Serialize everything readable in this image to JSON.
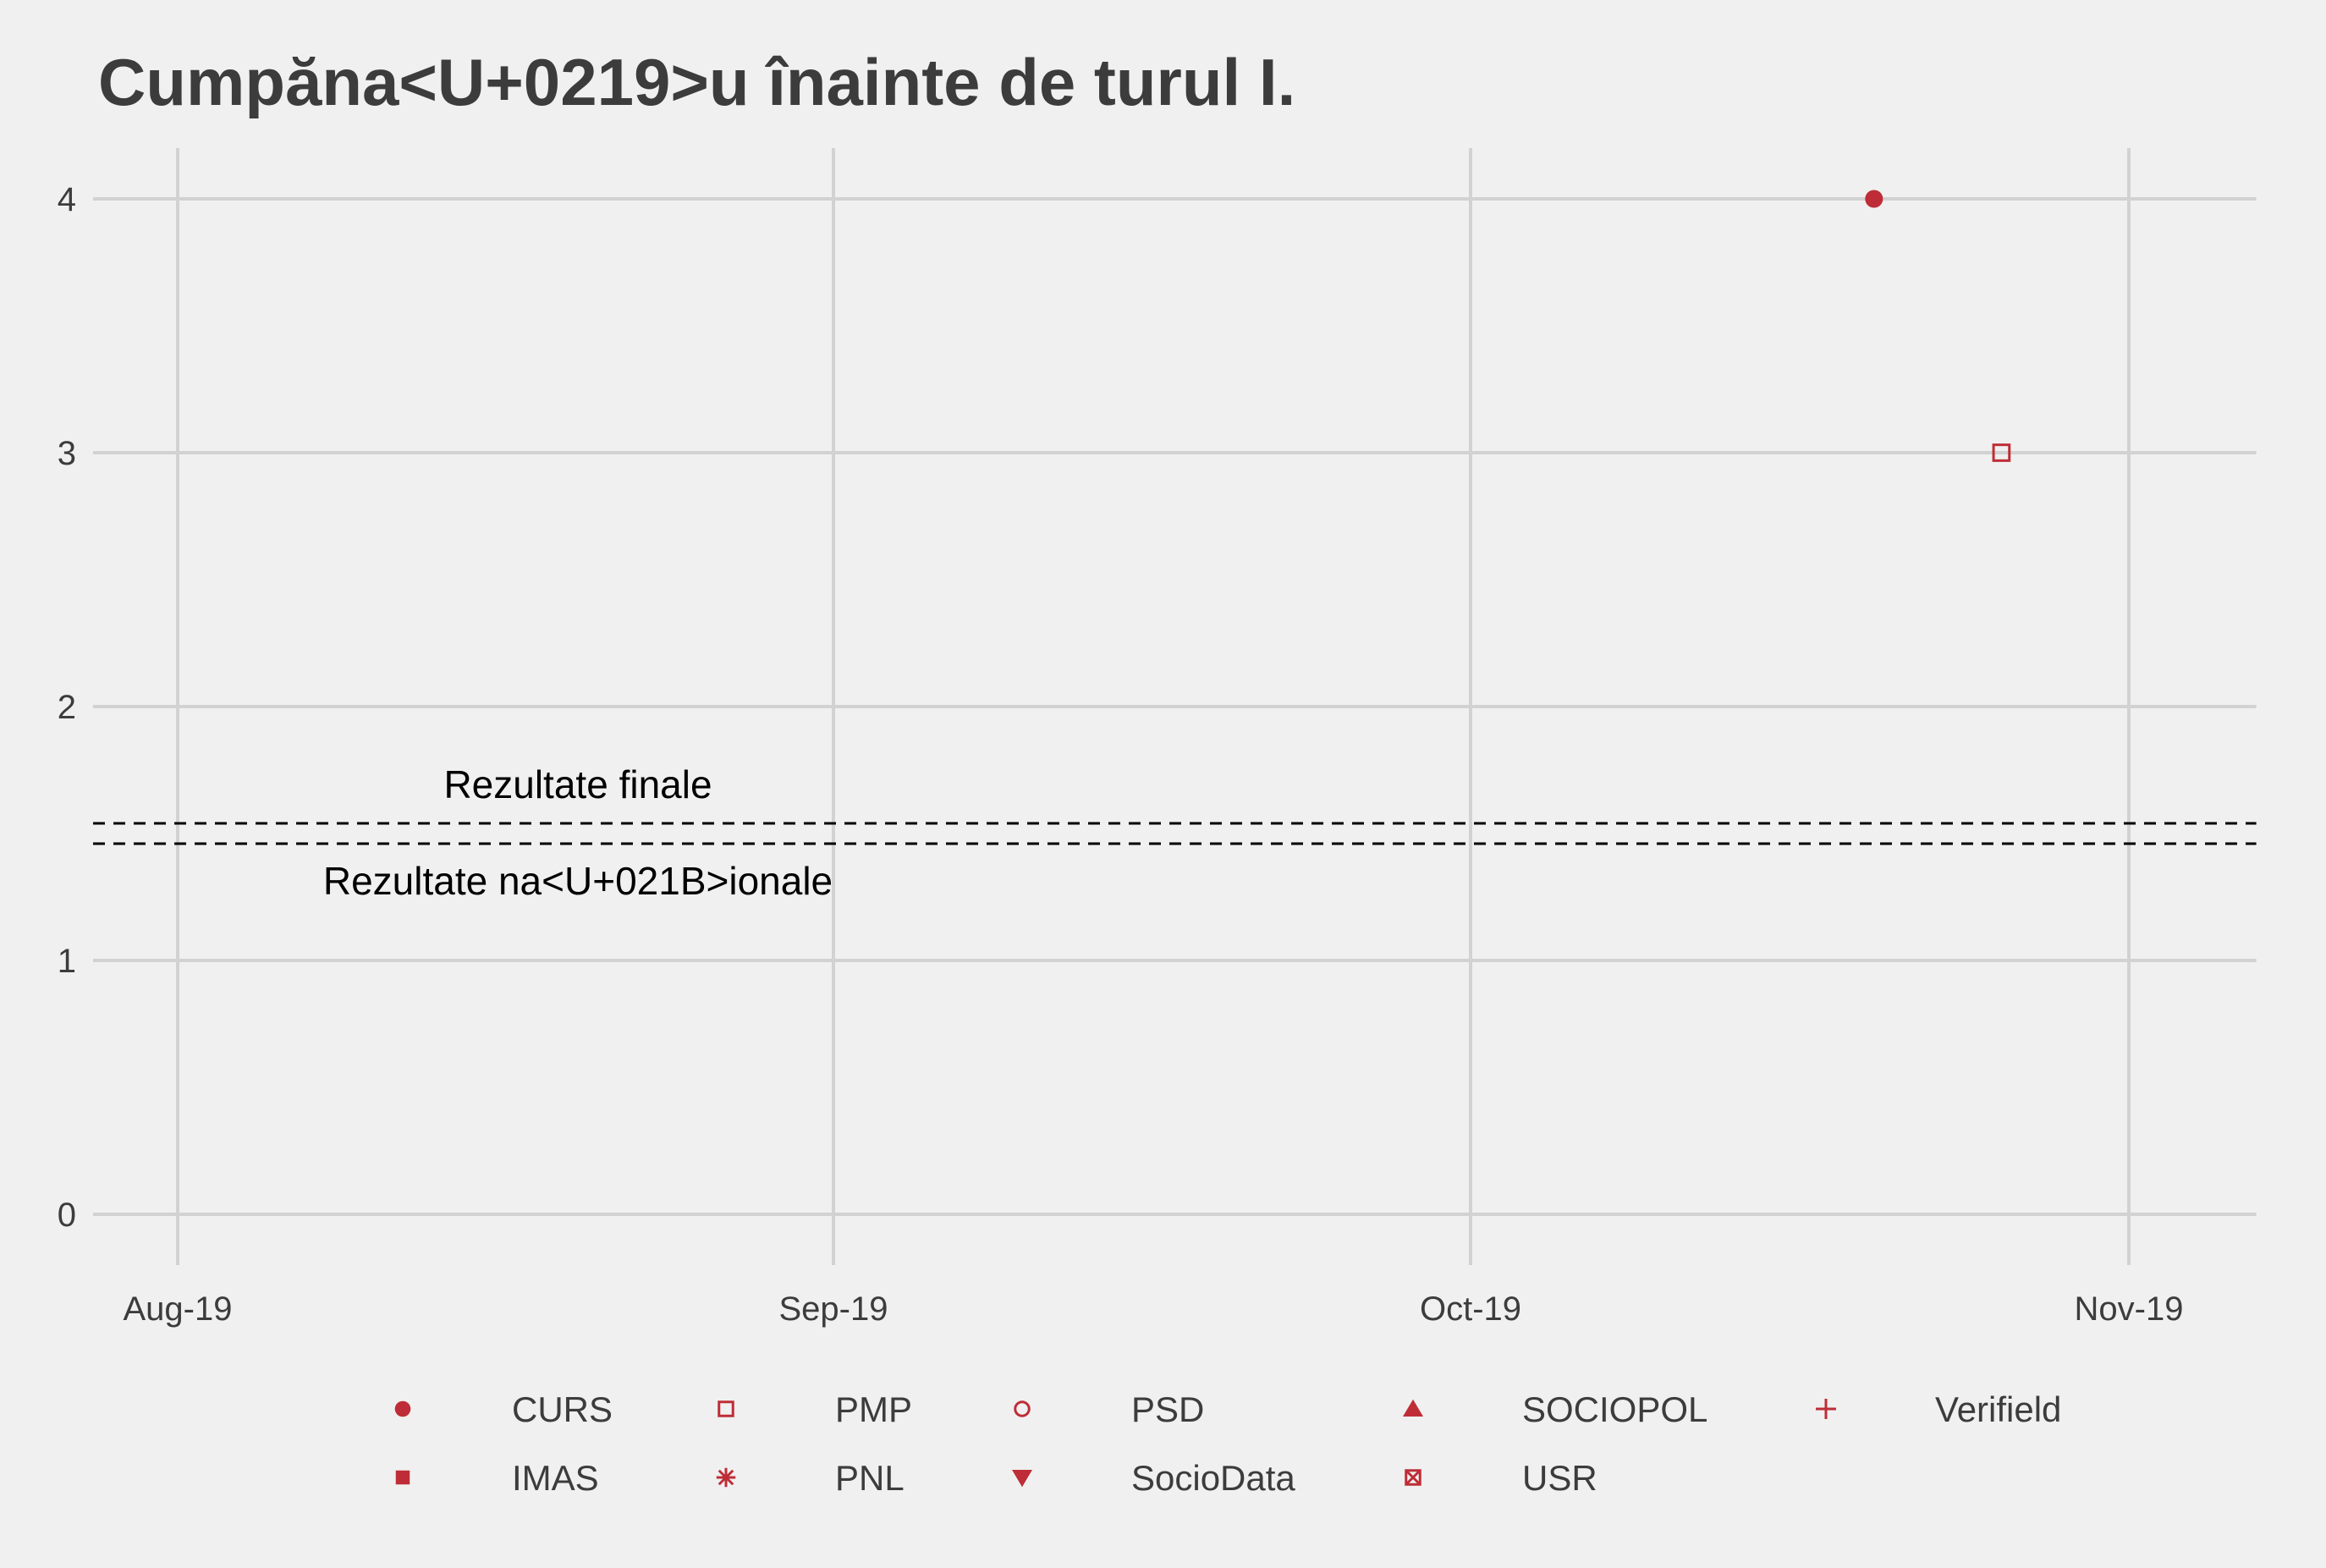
{
  "chart_data": {
    "type": "scatter",
    "title": "Cumpăna<U+0219>u înainte de turul I.",
    "xlabel": "",
    "ylabel": "",
    "x_ticks": [
      "Aug-19",
      "Sep-19",
      "Oct-19",
      "Nov-19"
    ],
    "x_tick_dates": [
      "2019-08-01",
      "2019-09-01",
      "2019-10-01",
      "2019-11-01"
    ],
    "xlim": [
      "2019-07-28",
      "2019-11-07"
    ],
    "ylim": [
      -0.2,
      4.2
    ],
    "y_ticks": [
      0,
      1,
      2,
      3,
      4
    ],
    "grid": true,
    "legend_position": "bottom",
    "color": "#BE2D37",
    "series": [
      {
        "name": "CURS",
        "shape": "filled-circle",
        "points": [
          {
            "x": "2019-10-20",
            "y": 4
          }
        ]
      },
      {
        "name": "IMAS",
        "shape": "filled-square",
        "points": []
      },
      {
        "name": "PMP",
        "shape": "open-square",
        "points": [
          {
            "x": "2019-10-26",
            "y": 3
          }
        ]
      },
      {
        "name": "PNL",
        "shape": "asterisk",
        "points": []
      },
      {
        "name": "PSD",
        "shape": "open-circle",
        "points": []
      },
      {
        "name": "SocioData",
        "shape": "filled-triangle-down",
        "points": []
      },
      {
        "name": "SOCIOPOL",
        "shape": "filled-triangle-up",
        "points": []
      },
      {
        "name": "USR",
        "shape": "square-cross",
        "points": []
      },
      {
        "name": "Verifield",
        "shape": "plus",
        "points": []
      }
    ],
    "reference_lines": [
      {
        "label": "Rezultate finale",
        "y": 1.54,
        "style": "dashed"
      },
      {
        "label": "Rezultate na<U+021B>ionale",
        "y": 1.46,
        "style": "dashed"
      }
    ]
  }
}
